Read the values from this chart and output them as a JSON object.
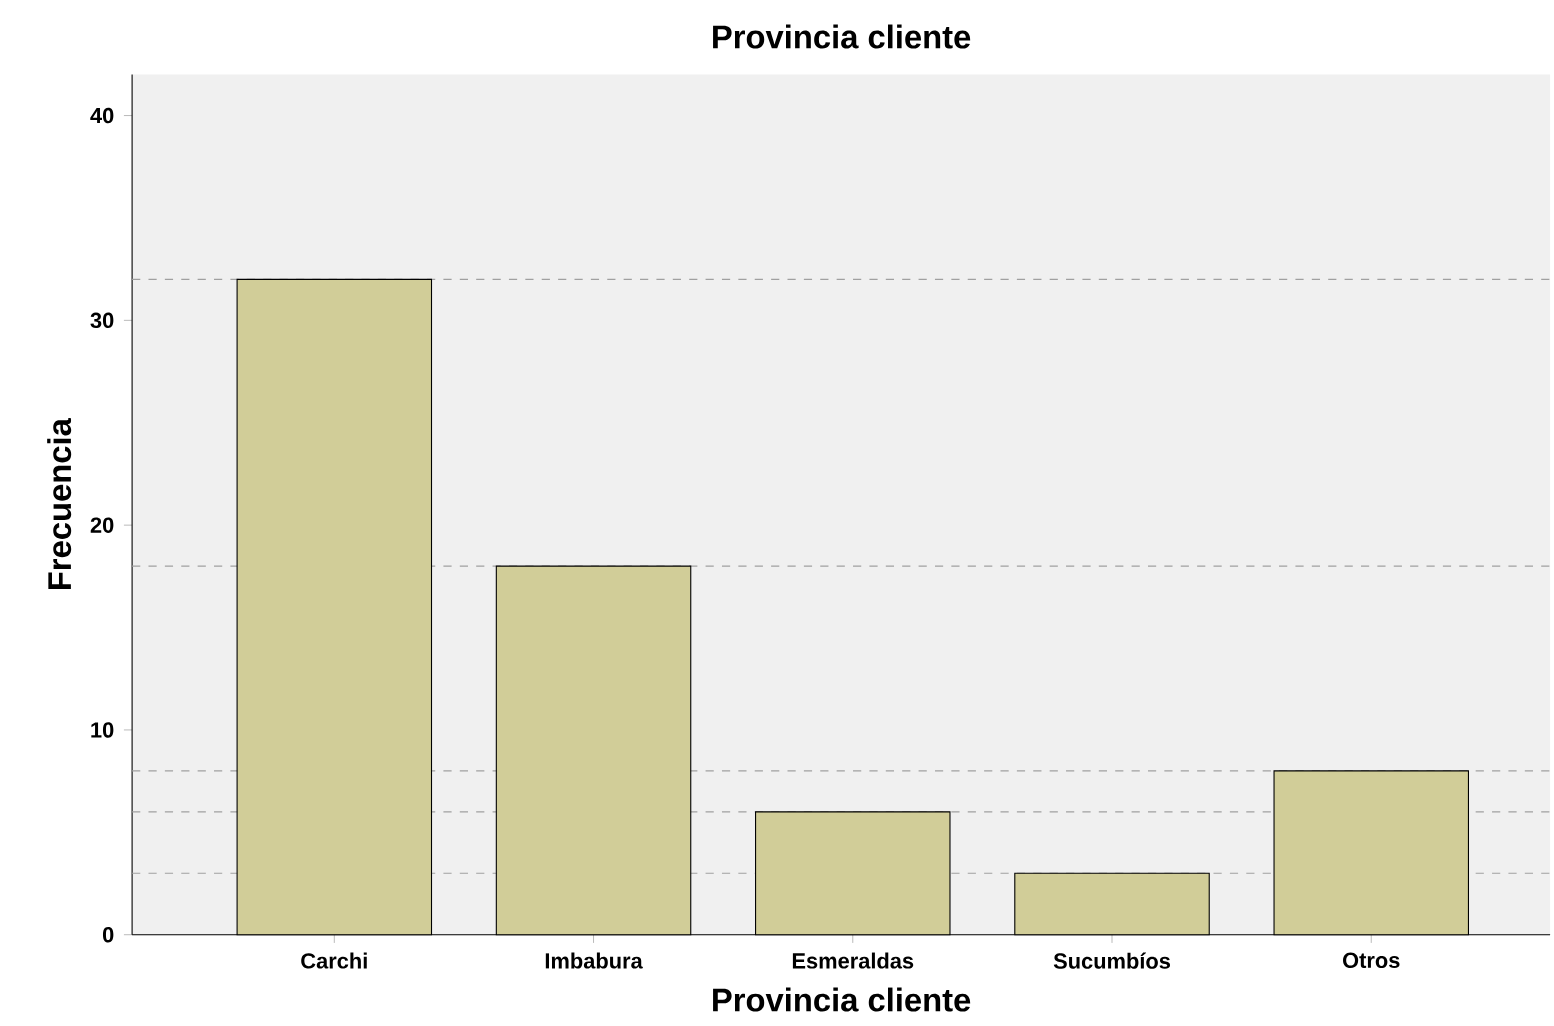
{
  "chart_data": {
    "type": "bar",
    "title": "Provincia cliente",
    "xlabel": "Provincia cliente",
    "ylabel": "Frecuencia",
    "categories": [
      "Carchi",
      "Imbabura",
      "Esmeraldas",
      "Sucumbíos",
      "Otros"
    ],
    "values": [
      32,
      18,
      6,
      3,
      8
    ],
    "color": "#d1cd98",
    "ylim": [
      0,
      42
    ],
    "yticks": [
      0,
      10,
      20,
      30,
      40
    ],
    "grid": false,
    "ref_lines": [
      {
        "axis": "y",
        "value": 32,
        "line_style": "dashed",
        "color": "#a0a0a0"
      },
      {
        "axis": "y",
        "value": 18,
        "line_style": "dashed",
        "color": "#a0a0a0"
      },
      {
        "axis": "y",
        "value": 6,
        "line_style": "dashed",
        "color": "#a0a0a0"
      },
      {
        "axis": "y",
        "value": 3,
        "line_style": "dashed",
        "color": "#a0a0a0"
      },
      {
        "axis": "y",
        "value": 8,
        "line_style": "dashed",
        "color": "#a0a0a0"
      }
    ]
  }
}
